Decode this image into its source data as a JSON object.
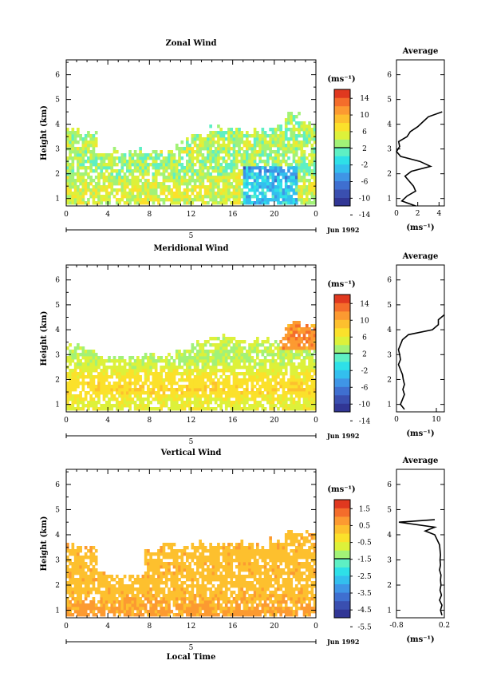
{
  "colors": {
    "colorbar": [
      "#313695",
      "#3a4fb0",
      "#3f6fd0",
      "#3f95e6",
      "#33bfee",
      "#2ee0e8",
      "#5ef0c4",
      "#a2f277",
      "#ddf13a",
      "#fbe12b",
      "#fdc02e",
      "#fc9a31",
      "#f46d2b",
      "#e0381f"
    ]
  },
  "shared": {
    "x_ticks": [
      "0",
      "4",
      "8",
      "12",
      "16",
      "20",
      "0"
    ],
    "date_tick": "5",
    "date_label": "Jun 1992",
    "units": "(ms⁻¹)",
    "avg_title": "Average",
    "y_ticks": [
      "1",
      "2",
      "3",
      "4",
      "5",
      "6"
    ]
  },
  "chart_data": [
    {
      "type": "heatmap",
      "title": "Zonal Wind",
      "ylabel": "Height (km)",
      "xlabel": "",
      "xlim": [
        0,
        24
      ],
      "ylim": [
        0.7,
        6.6
      ],
      "colorbar": {
        "ticks": [
          "14",
          "10",
          "6",
          "2",
          "-2",
          "-6",
          "-10",
          "-14"
        ],
        "range": [
          -16,
          16
        ]
      },
      "field": {
        "base": 5,
        "cloud_top": [
          3.7,
          3.6,
          2.8,
          2.9,
          2.9,
          2.8,
          2.8,
          3.3,
          3.6,
          3.8,
          3.8,
          3.7,
          3.7,
          3.8,
          4.3,
          4.0
        ],
        "profile": [
          {
            "h": 1.0,
            "v": 3.0
          },
          {
            "h": 1.4,
            "v": 4.0
          },
          {
            "h": 1.8,
            "v": 2.5
          },
          {
            "h": 2.2,
            "v": 0.8
          },
          {
            "h": 2.6,
            "v": 1.5
          },
          {
            "h": 3.0,
            "v": 2.2
          },
          {
            "h": 3.5,
            "v": 1.5
          }
        ]
      },
      "average": {
        "profile": [
          {
            "h": 0.7,
            "v": 1.8
          },
          {
            "h": 0.9,
            "v": 0.5
          },
          {
            "h": 1.1,
            "v": 1.0
          },
          {
            "h": 1.3,
            "v": 1.8
          },
          {
            "h": 1.5,
            "v": 1.6
          },
          {
            "h": 1.7,
            "v": 1.2
          },
          {
            "h": 1.9,
            "v": 0.8
          },
          {
            "h": 2.1,
            "v": 1.4
          },
          {
            "h": 2.3,
            "v": 3.2
          },
          {
            "h": 2.5,
            "v": 2.2
          },
          {
            "h": 2.7,
            "v": 0.4
          },
          {
            "h": 2.9,
            "v": 0.0
          },
          {
            "h": 3.1,
            "v": 0.3
          },
          {
            "h": 3.3,
            "v": 0.2
          },
          {
            "h": 3.5,
            "v": 1.0
          },
          {
            "h": 3.7,
            "v": 1.3
          },
          {
            "h": 3.9,
            "v": 2.0
          },
          {
            "h": 4.1,
            "v": 2.5
          },
          {
            "h": 4.3,
            "v": 3.0
          },
          {
            "h": 4.5,
            "v": 4.3
          }
        ],
        "xlim": [
          0,
          4.5
        ],
        "x_ticks": [
          "0",
          "2",
          "4"
        ],
        "x_tick_values": [
          0,
          2,
          4
        ]
      }
    },
    {
      "type": "heatmap",
      "title": "Meridional Wind",
      "ylabel": "Height (km)",
      "xlabel": "",
      "xlim": [
        0,
        24
      ],
      "ylim": [
        0.7,
        6.6
      ],
      "colorbar": {
        "ticks": [
          "14",
          "10",
          "6",
          "2",
          "-2",
          "-6",
          "-10",
          "-14"
        ],
        "range": [
          -16,
          16
        ]
      },
      "field": {
        "base": 2,
        "cloud_top": [
          3.3,
          3.2,
          2.8,
          2.8,
          2.8,
          2.9,
          2.9,
          3.1,
          3.4,
          3.6,
          3.6,
          3.5,
          3.6,
          3.5,
          4.2,
          4.1
        ],
        "profile": [
          {
            "h": 1.0,
            "v": 4.0
          },
          {
            "h": 1.5,
            "v": 6.5
          },
          {
            "h": 2.0,
            "v": 5.5
          },
          {
            "h": 2.5,
            "v": 3.0
          },
          {
            "h": 3.0,
            "v": 2.0
          },
          {
            "h": 3.5,
            "v": 3.0
          }
        ]
      },
      "average": {
        "profile": [
          {
            "h": 0.8,
            "v": 2.0
          },
          {
            "h": 1.0,
            "v": 1.0
          },
          {
            "h": 1.2,
            "v": 1.5
          },
          {
            "h": 1.4,
            "v": 2.0
          },
          {
            "h": 1.6,
            "v": 1.6
          },
          {
            "h": 1.8,
            "v": 2.0
          },
          {
            "h": 2.0,
            "v": 1.7
          },
          {
            "h": 2.2,
            "v": 1.5
          },
          {
            "h": 2.4,
            "v": 1.0
          },
          {
            "h": 2.6,
            "v": 0.5
          },
          {
            "h": 2.8,
            "v": 1.0
          },
          {
            "h": 3.0,
            "v": 0.8
          },
          {
            "h": 3.2,
            "v": 0.5
          },
          {
            "h": 3.4,
            "v": 1.0
          },
          {
            "h": 3.6,
            "v": 1.5
          },
          {
            "h": 3.8,
            "v": 3.0
          },
          {
            "h": 4.0,
            "v": 9.0
          },
          {
            "h": 4.2,
            "v": 10.5
          },
          {
            "h": 4.4,
            "v": 10.5
          },
          {
            "h": 4.6,
            "v": 12.0
          }
        ],
        "xlim": [
          0,
          12
        ],
        "x_ticks": [
          "0",
          "10"
        ],
        "x_tick_values": [
          0,
          10
        ]
      }
    },
    {
      "type": "heatmap",
      "title": "Vertical Wind",
      "ylabel": "Height (km)",
      "xlabel": "Local Time",
      "xlim": [
        0,
        24
      ],
      "ylim": [
        0.7,
        6.6
      ],
      "colorbar": {
        "ticks": [
          "1.5",
          "0.5",
          "-0.5",
          "-1.5",
          "-2.5",
          "-3.5",
          "-4.5",
          "-5.5"
        ],
        "range": [
          -6.2,
          2.2
        ]
      },
      "field": {
        "base": 0.3,
        "cloud_top": [
          3.5,
          3.4,
          2.5,
          2.3,
          2.3,
          3.3,
          3.5,
          3.5,
          3.6,
          3.6,
          3.6,
          3.6,
          3.5,
          3.7,
          4.1,
          4.0
        ],
        "profile": [
          {
            "h": 1.0,
            "v": 0.5
          },
          {
            "h": 1.5,
            "v": 0.3
          },
          {
            "h": 2.0,
            "v": 0.2
          },
          {
            "h": 2.5,
            "v": 0.3
          },
          {
            "h": 3.0,
            "v": 0.2
          },
          {
            "h": 3.5,
            "v": 0.3
          }
        ]
      },
      "average": {
        "profile": [
          {
            "h": 0.8,
            "v": 0.15
          },
          {
            "h": 1.0,
            "v": 0.12
          },
          {
            "h": 1.2,
            "v": 0.15
          },
          {
            "h": 1.4,
            "v": 0.1
          },
          {
            "h": 1.6,
            "v": 0.14
          },
          {
            "h": 1.8,
            "v": 0.11
          },
          {
            "h": 2.0,
            "v": 0.13
          },
          {
            "h": 2.2,
            "v": 0.12
          },
          {
            "h": 2.4,
            "v": 0.13
          },
          {
            "h": 2.6,
            "v": 0.1
          },
          {
            "h": 2.8,
            "v": 0.12
          },
          {
            "h": 3.0,
            "v": 0.11
          },
          {
            "h": 3.2,
            "v": 0.12
          },
          {
            "h": 3.4,
            "v": 0.11
          },
          {
            "h": 3.6,
            "v": 0.1
          },
          {
            "h": 3.8,
            "v": 0.05
          },
          {
            "h": 4.0,
            "v": 0.0
          },
          {
            "h": 4.15,
            "v": -0.2
          },
          {
            "h": 4.3,
            "v": 0.0
          },
          {
            "h": 4.5,
            "v": -0.75
          },
          {
            "h": 4.6,
            "v": 0.0
          }
        ],
        "xlim": [
          -0.8,
          0.2
        ],
        "x_ticks": [
          "-0.8",
          "0.2"
        ],
        "x_tick_values": [
          -0.8,
          0.2
        ]
      }
    }
  ]
}
